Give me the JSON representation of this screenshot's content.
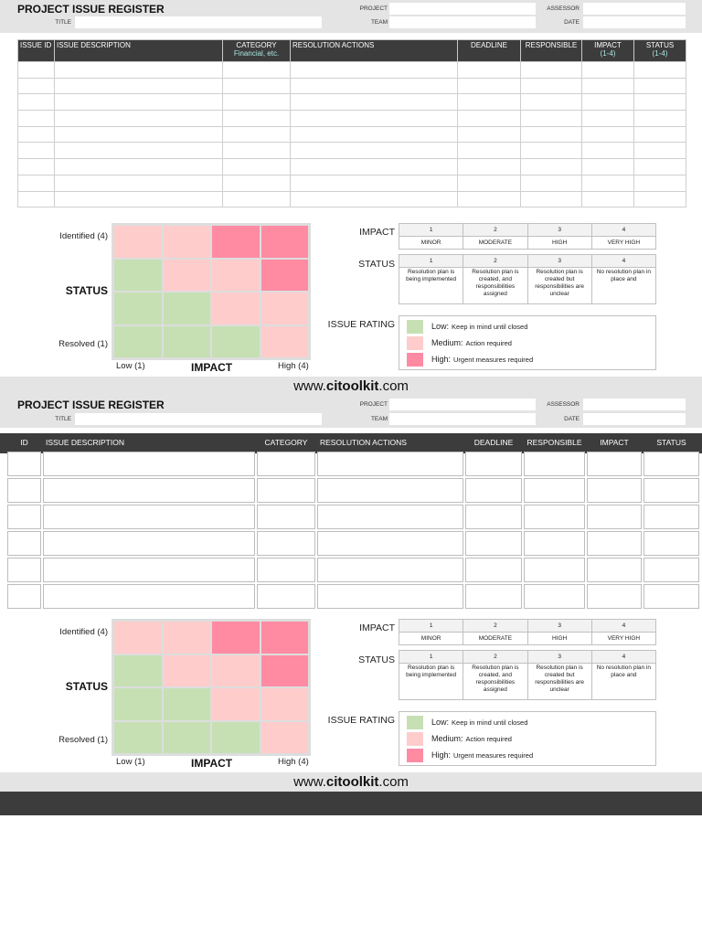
{
  "header": {
    "title": "PROJECT ISSUE REGISTER",
    "label_title": "TITLE",
    "label_project": "PROJECT",
    "label_team": "TEAM",
    "label_assessor": "ASSESSOR",
    "label_date": "DATE"
  },
  "table1": {
    "col_id": "ISSUE ID",
    "col_desc": "ISSUE DESCRIPTION",
    "col_category": "CATEGORY",
    "col_category_sub": "Financial, etc.",
    "col_resolution": "RESOLUTION ACTIONS",
    "col_deadline": "DEADLINE",
    "col_responsible": "RESPONSIBLE",
    "col_impact": "IMPACT",
    "col_impact_sub": "(1-4)",
    "col_status": "STATUS",
    "col_status_sub": "(1-4)"
  },
  "table2": {
    "col_id": "ID",
    "col_desc": "ISSUE DESCRIPTION",
    "col_category": "CATEGORY",
    "col_resolution": "RESOLUTION ACTIONS",
    "col_deadline": "DEADLINE",
    "col_responsible": "RESPONSIBLE",
    "col_impact": "IMPACT",
    "col_status": "STATUS"
  },
  "matrix": {
    "y_top": "Identified (4)",
    "y_bottom": "Resolved (1)",
    "y_title": "STATUS",
    "x_left": "Low (1)",
    "x_right": "High (4)",
    "x_title": "IMPACT"
  },
  "impact_key": {
    "label": "IMPACT",
    "n1": "1",
    "n2": "2",
    "n3": "3",
    "n4": "4",
    "t1": "MINOR",
    "t2": "MODERATE",
    "t3": "HIGH",
    "t4": "VERY HIGH"
  },
  "status_key": {
    "label": "STATUS",
    "n1": "1",
    "n2": "2",
    "n3": "3",
    "n4": "4",
    "t1": "Resolution plan is being implemented",
    "t2": "Resolution plan is created, and responsibilities assigned",
    "t3": "Resolution plan is created but responsibilities are unclear",
    "t4": "No resolution plan in place and"
  },
  "rating": {
    "label": "ISSUE RATING",
    "low": "Low:",
    "low_desc": "Keep in mind until closed",
    "medium": "Medium:",
    "medium_desc": "Action required",
    "high": "High:",
    "high_desc": "Urgent measures required"
  },
  "brand": {
    "prefix": "www.",
    "name": "citoolkit",
    "suffix": ".com"
  },
  "colors": {
    "low": "#c6e0b4",
    "medium": "#ffcccc",
    "high": "#ff8ba3",
    "header_dark": "#3c3c3c"
  }
}
